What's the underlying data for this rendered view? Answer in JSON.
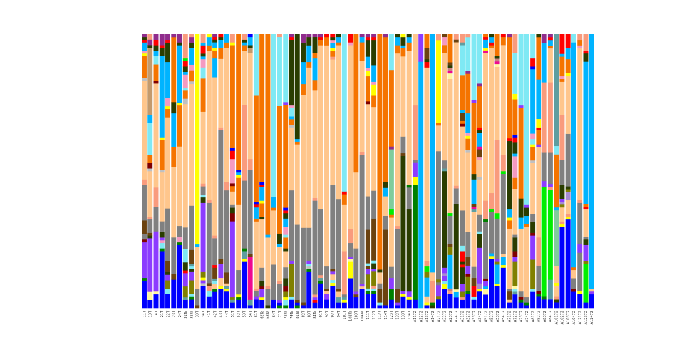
{
  "chart_data": {
    "type": "bar",
    "stacked": true,
    "normalized_to": 100,
    "title": "",
    "xlabel": "",
    "ylabel": "",
    "ylim": [
      0,
      100
    ],
    "grid": false,
    "legend": "none",
    "series_colors": {
      "B": "#0000ff",
      "P": "#8c3cff",
      "G": "#808080",
      "K": "#ffc68c",
      "O": "#f57400",
      "C": "#7fe9f4",
      "D": "#2a3d00",
      "S": "#00b4ff",
      "R": "#ff0000",
      "N": "#6b420f",
      "M": "#f99b7d",
      "L": "#808000",
      "Y": "#ffff00",
      "V": "#902c8c",
      "E": "#008000",
      "Q": "#00ee00",
      "T": "#5f9ea0",
      "J": "#f49ac1",
      "X": "#80cc9c",
      "Z": "#ee0a90",
      "W": "#c0c0c0",
      "H": "#800000",
      "U": "#c49a6c",
      "F": "#fff6a0",
      "A": "#a78bd0",
      "I": "#c88080"
    },
    "categories": [
      "11T",
      "13T",
      "14T",
      "21T",
      "22T",
      "23T",
      "24T",
      "31Ta",
      "32Ta",
      "33T",
      "34T",
      "41T",
      "42T",
      "43T",
      "44T",
      "51T",
      "52T",
      "53T",
      "54T",
      "61T",
      "62Ta",
      "63Ta",
      "64T",
      "71T",
      "72Ta",
      "74Ta",
      "81Ta",
      "82T",
      "83T",
      "84Ta",
      "91T",
      "92T",
      "93T",
      "94T",
      "101T",
      "102Ta",
      "103T",
      "104Ta",
      "111T",
      "112T",
      "113T",
      "114T",
      "123T",
      "132T",
      "133T",
      "134T",
      "A1172",
      "A1272",
      "A1372",
      "A1472",
      "A2172",
      "A2272",
      "A2372",
      "A2472",
      "A3172",
      "A3272",
      "A3372",
      "A3472",
      "A5172",
      "A5272",
      "A5372",
      "A5472",
      "A7172",
      "A7272",
      "A7372",
      "A7472",
      "A8172",
      "A8272",
      "A8372",
      "A8472",
      "A10172",
      "A10272",
      "A10372",
      "A10472",
      "A12172",
      "A12372",
      "A12472"
    ],
    "stacks_bottom_to_top": [
      "B10 E1 P13 H1 G2 N5 G13 M2 K36 W1 O8 Y1 J1 S3 R1 D1 V1",
      "B3 F3 P20 D1 N1 G5 M1 K17 W1 H2 O3 C12 S3 U25 D1 V2 M2",
      "B5 F1 P22 G9 M7 K38 H1 O6 C3 S2 D2 R2 V2",
      "B21 E1 C2 J1 P1 D2 G4 K18 W1 O11 Y1 S30 D3 R1 V4",
      "B5 C2 L3 P2 D1 N4 G19 K33 O3 Y1 J3 S13 D7 R1 V2",
      "B10 N2 G13 K25 O7 S12 D4 O23 V1",
      "B23 E1 J2 G4 K29 O15 Y1 S21 D1 V3",
      "B3 T1 L4 P5 R1 D3 C5 G8 K46 W2 O3 C1 J5 S1 D2 R2 Q1 M9",
      "B3 E1 C1 L5 P3 D1 C1 T1 N5 G16 K44 W1 O4 J2 S6 D2 V2 M1",
      "N1 G6 K15 S1 Y76",
      "B8 W1 P1 Y1 L2 P25 D2 C1 G3 M1 K26 O12 C4 J3 S1 D1 R3 S1 M3",
      "B4 C2 M2 N1 G29 M1 K54 O2 S3 Y1",
      "B6 E1 K2 C1 T1 N4 R1 G10 M1 K59 S7 O3 Y1 S2 D1 R1 V1",
      "B7 Y1 K3 P5 N2 G47 M1 K25 O4 S3 D1 R1",
      "B6 Y1 T1 K1 N4 G30 M3 K49 O2 S3",
      "B2 T1 L1 P28 H3 D2 G1 K5 O2 H1 J9 R3 B1 O38 Y1 M3",
      "B3 E1 Y1 G9 K24 O10 Y1 S1 B1 O50",
      "B17 Y1 T3 E1 G25 M28 K20 O2 S1 D1 M2",
      "B1 T2 Z16 N1 G31 M4 K39 U2 D1 S3 B1",
      "B3 P1 G2 M1 K24 O1 S4 R1 B1 O38 C22",
      "B3 Y1 P3 H1 D2 G5 K18 D1 O5 Y1 S5 R1 B1 O55",
      "D1 G6 M1 K18 S1 O74",
      "B3 G13 K20 O1 S4 C60",
      "E1 B1 P1 G6 M1 K13 S1 D4 O48 C26 M1",
      "E1 C2 Y1 L2 H2 D3 G4 K6 D1 O4 C1 J3 S3 D2 R1 B1 O38 P1 C25",
      "B3 C1 L12 P1 G26 K23 W1 O2 S1 C3 J1 D24 R1 V1",
      "E1 B1 N1 G28 K30 O1 S1 D39",
      "B1 N1 G27 K48 O4 S8 D7 V3",
      "B13 E1 W1 C1 P1 G12 K58 O2 S6 D3 V1",
      "B2 R1 P1 M1 G35 M1 K40 O4 S8 O2 D6 V1",
      "B9 E1 T1 M1 G24 K60 O2 R1 V1",
      "B3 P2 K1 N1 G8 K80 O3 R1",
      "B8 Y1 C1 K2 P1 N1 G30 K45 M1 O2 Y1 S2 J1 D1 R1",
      "B2 T2 K2 N1 G33 K57 O1 S2 D1",
      "B2 Y1 T1 G1 M16 K17 O4 R1 C58",
      "B11 Y6 F1 P1 G5 M5 K68 J1 R3",
      "B4 N1 P1 G16 K28 O51",
      "B7 K1 P1 G48 M1 K34 O7 S2 V1",
      "B5 E1 C1 L5 P2 N1 C1 N12 G12 K33 H1 O9 Y2 J1 S4 D6 R1 V1",
      "B5 E1 C1 M1 L5 P1 D2 C1 N15 G10 K30 O4 Y4 J1 S6 D9 R1 V1",
      "B1 C1 N5 G2 K4 D1 O86",
      "B1 N27 G5 K7 S3 D2 O52 V1",
      "B3 E4 P4 G4 K18 O1 Q2 X22 V1 O28 C13",
      "B1 P1 N5 G22 M1 K63 O3 S3 D1",
      "B4 Y1 P1 D49 N1 G6 K29 O3 S1 D3 Y1",
      "B3 Y1 P2 D30 G8 E1 K49 O3 S2 D1",
      "B3 E42 Y3 P5 G1 M20 K26",
      "S90 P10",
      "B1 Y1 K2 S7 L2 Q2 M2 K70 R2 D1 N4 O5",
      "D1 E1 M8 K3 S87",
      "B3 L1 P4 G1 L1 G45 K9 O1 Y29 M2",
      "B7 Y2 C1 P2 A1 P2 D36 T1 G3 K40 O3 J3 N1",
      "B5 M1 I1 S12 L3 N1 G10 Q1 K48 F2 Z1 I1 D1 N1 O10",
      "B4 S2 F1 D32 G6 M1 K54 N1 M2",
      "B3 M1 L2 P3 D6 R1 D1 R4 C2 G13 K31 H1 O1 N3 S1 O13 C11 T1 M3",
      "B5 E1 L5 H1 P3 N3 G9 K28 W1 O4 Y1 J1 S7 O14 V1 C12 M1",
      "B3 C1 R4 N3 G4 K20 T1 Z1 N1 S9 D2 O26 P1 C24",
      "B6 Y1 A2 P13 D5 C1 G6 K13 W1 K6 J1 N3 Z1 S5 D1 R1 O15 V1 C18",
      "B5 F2 S1 P2 H1 G21 E1 M7 K55 Z1 Y1 S3 R1 O1",
      "B18 Y1 S1 G15 Q1 M6 K53 O1 R1 S2 D1",
      "B8 Y1 S7 L1 P1 G15 Q2 M27 K27 F1 Z1 I1 D1 O8",
      "B15 Y1 S3 K1 G30 Q1 M6 K41 O3 R1",
      "B2 K1 N3 G1 K22 O3 Y1 S3 D25 R1 O37 V1",
      "B5 T1 C1 F1 L9 P2 H2 D5 G1 K17 O4 J8 S1 D4 R2 B1 O13 Y2 C15 M7",
      "B2 E1 H1 G2 K23 S4 D7 O33 P1 C26",
      "B1 E1 G2 K26 O1 S3 D3 P1 C63",
      "B6 C1 L11 P9 H1 D4 G3 K19 W1 O5 Y1 C2 J2 S24 B1 R3 C9",
      "B4 E1 H1 G9 M10 K32 P1 O5 R1 Y3 S14 O15 D1",
      "B3 E1 Q39 P2 G10 M25 S14 V3",
      "B3 T7 Q32 M1 P1 G11 M25 K12 O1 S2 R1 V1",
      "B2 D1 M1 K4 Y1 K6 X20 S1 O19 C3 T40",
      "B29 Y1 M1 K5 L1 A1 P1 D5 G9 M16 K12 O1 J1 O7 S1 R7",
      "B32 Y1 M1 K5 A3 L1 D1 G19 K21 Y1 O5 S4 R5",
      "B6 H1 G4 K3 O1 S83 C3",
      "B5 Y1 G14 P3 G15 M1 K55 J1 O2 M2",
      "B2 Q14 L1 P6 D2 G1 K10 R1 O1 S52 D3 R1 M6",
      "B5 P1 K1 S93"
    ]
  }
}
